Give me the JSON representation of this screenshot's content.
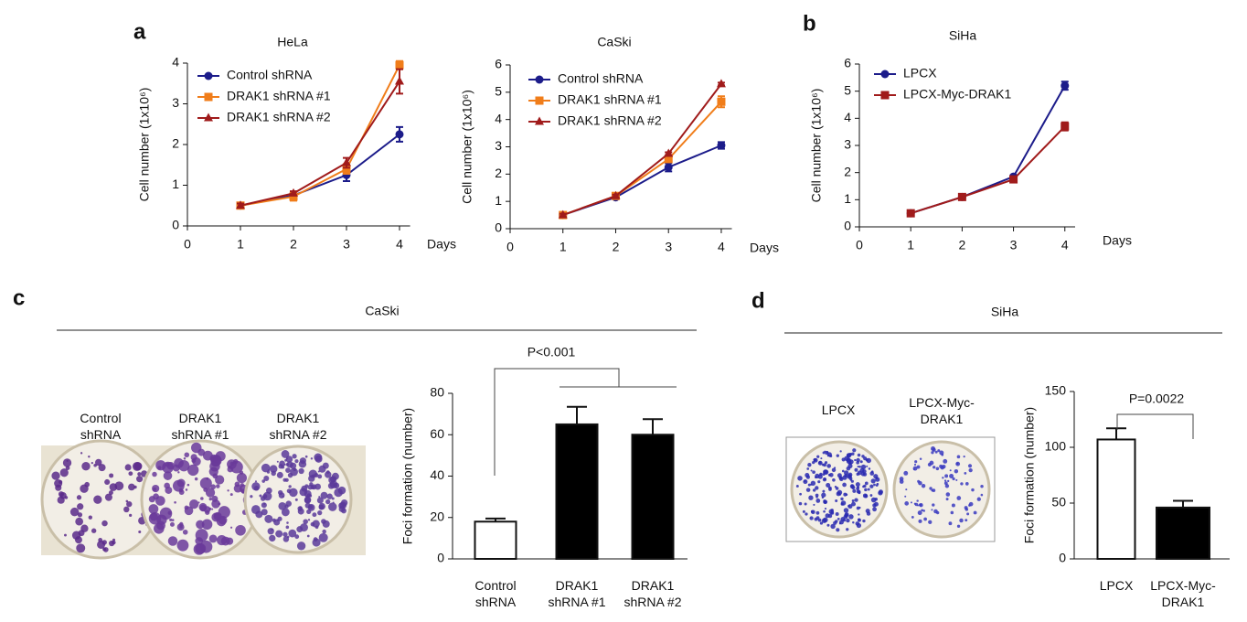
{
  "panel_labels": [
    "a",
    "b",
    "c",
    "d"
  ],
  "photos": [
    {
      "title": "CaSki",
      "labels": [
        "Control shRNA",
        "DRAK1 shRNA #1",
        "DRAK1 shRNA #2"
      ]
    },
    {
      "title": "SiHa",
      "labels": [
        "LPCX",
        "LPCX-Myc-DRAK1"
      ]
    }
  ],
  "chart_data": [
    {
      "type": "line",
      "title": "HeLa",
      "x_label": "Days",
      "y_label": "Cell number (1x10⁶)",
      "x": [
        1,
        2,
        3,
        4
      ],
      "xlim": [
        0,
        4.2
      ],
      "xticks": [
        0,
        1,
        2,
        3,
        4
      ],
      "ylim": [
        0,
        4
      ],
      "yticks": [
        0,
        1,
        2,
        3,
        4
      ],
      "series": [
        {
          "name": "Control shRNA",
          "color": "#1c1c8a",
          "marker": "circle",
          "values": [
            0.5,
            0.75,
            1.25,
            2.25
          ],
          "errors": [
            0.05,
            0.05,
            0.15,
            0.18
          ]
        },
        {
          "name": "DRAK1 shRNA #1",
          "color": "#f07d1a",
          "marker": "square",
          "values": [
            0.5,
            0.72,
            1.4,
            3.95
          ],
          "errors": [
            0.05,
            0.1,
            0.12,
            0.1
          ]
        },
        {
          "name": "DRAK1 shRNA #2",
          "color": "#a01b1b",
          "marker": "triangle",
          "values": [
            0.5,
            0.8,
            1.55,
            3.55
          ],
          "errors": [
            0.05,
            0.05,
            0.12,
            0.3
          ]
        }
      ]
    },
    {
      "type": "line",
      "title": "CaSki",
      "x_label": "Days",
      "y_label": "Cell number (1x10⁶)",
      "x": [
        1,
        2,
        3,
        4
      ],
      "xlim": [
        0,
        4.2
      ],
      "xticks": [
        0,
        1,
        2,
        3,
        4
      ],
      "ylim": [
        0,
        6
      ],
      "yticks": [
        0,
        1,
        2,
        3,
        4,
        5,
        6
      ],
      "series": [
        {
          "name": "Control shRNA",
          "color": "#1c1c8a",
          "marker": "circle",
          "values": [
            0.5,
            1.15,
            2.25,
            3.05
          ],
          "errors": [
            0.05,
            0.05,
            0.15,
            0.12
          ]
        },
        {
          "name": "DRAK1 shRNA #1",
          "color": "#f07d1a",
          "marker": "square",
          "values": [
            0.5,
            1.2,
            2.55,
            4.65
          ],
          "errors": [
            0.05,
            0.05,
            0.1,
            0.2
          ]
        },
        {
          "name": "DRAK1 shRNA #2",
          "color": "#a01b1b",
          "marker": "triangle",
          "values": [
            0.5,
            1.2,
            2.75,
            5.3
          ],
          "errors": [
            0.05,
            0.05,
            0.05,
            0.05
          ]
        }
      ]
    },
    {
      "type": "line",
      "title": "SiHa",
      "x_label": "Days",
      "y_label": "Cell number (1x10⁶)",
      "x": [
        1,
        2,
        3,
        4
      ],
      "xlim": [
        0,
        4.2
      ],
      "xticks": [
        0,
        1,
        2,
        3,
        4
      ],
      "ylim": [
        0,
        6
      ],
      "yticks": [
        0,
        1,
        2,
        3,
        4,
        5,
        6
      ],
      "series": [
        {
          "name": "LPCX",
          "color": "#1c1c8a",
          "marker": "circle",
          "values": [
            0.5,
            1.1,
            1.85,
            5.2
          ],
          "errors": [
            0.05,
            0.05,
            0.05,
            0.15
          ]
        },
        {
          "name": "LPCX-Myc-DRAK1",
          "color": "#a01b1b",
          "marker": "square",
          "values": [
            0.5,
            1.1,
            1.75,
            3.7
          ],
          "errors": [
            0.05,
            0.05,
            0.05,
            0.15
          ]
        }
      ]
    },
    {
      "type": "bar",
      "y_label": "Foci formation (number)",
      "annotation": "P<0.001",
      "categories": [
        "Control shRNA",
        "DRAK1 shRNA #1",
        "DRAK1 shRNA #2"
      ],
      "values": [
        18,
        65,
        60
      ],
      "errors": [
        1.5,
        8.5,
        7.5
      ],
      "colors": [
        "#ffffff",
        "#000000",
        "#000000"
      ],
      "ylim": [
        0,
        80
      ],
      "yticks": [
        0,
        20,
        40,
        60,
        80
      ]
    },
    {
      "type": "bar",
      "y_label": "Foci formation (number)",
      "annotation": "P=0.0022",
      "categories": [
        "LPCX",
        "LPCX-Myc-DRAK1"
      ],
      "values": [
        107,
        46
      ],
      "errors": [
        10,
        6
      ],
      "colors": [
        "#ffffff",
        "#000000"
      ],
      "ylim": [
        0,
        150
      ],
      "yticks": [
        0,
        50,
        100,
        150
      ]
    }
  ]
}
